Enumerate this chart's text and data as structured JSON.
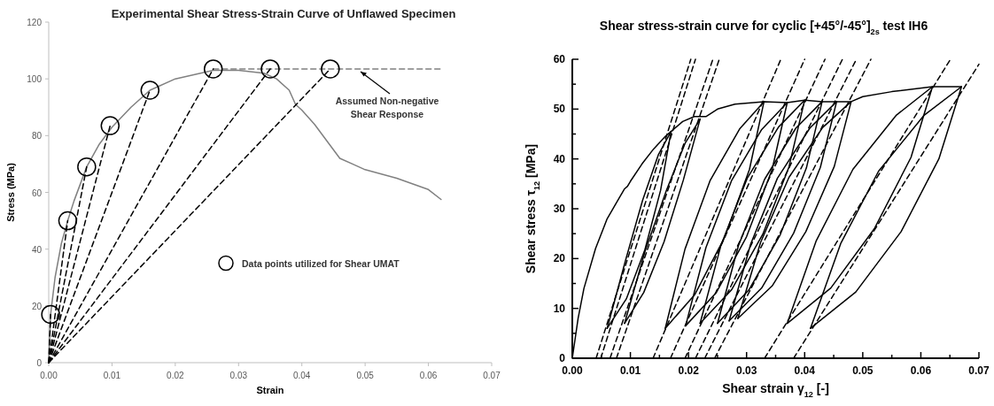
{
  "chart_data": [
    {
      "type": "line",
      "title": "Experimental Shear Stress-Strain Curve of Unflawed Specimen",
      "xlabel": "Strain",
      "ylabel": "Stress (MPa)",
      "xlim": [
        0,
        0.07
      ],
      "ylim": [
        0,
        120
      ],
      "xticks": [
        {
          "value": 0,
          "label": "0.00"
        },
        {
          "value": 0.01,
          "label": "0.01"
        },
        {
          "value": 0.02,
          "label": "0.02"
        },
        {
          "value": 0.03,
          "label": "0.03"
        },
        {
          "value": 0.04,
          "label": "0.04"
        },
        {
          "value": 0.05,
          "label": "0.05"
        },
        {
          "value": 0.06,
          "label": "0.06"
        },
        {
          "value": 0.07,
          "label": "0.07"
        }
      ],
      "yticks": [
        0,
        20,
        40,
        60,
        80,
        100,
        120
      ],
      "legend": "right",
      "annotations": [
        {
          "text": "Assumed Non-negative Shear Response",
          "x": 0.049,
          "y": 103.5
        }
      ],
      "series": [
        {
          "color": "#808080",
          "line_style": "solid",
          "x": [
            0,
            0.0003,
            0.001,
            0.002,
            0.003,
            0.004,
            0.006,
            0.008,
            0.01,
            0.013,
            0.016,
            0.02,
            0.026,
            0.03,
            0.034,
            0.036,
            0.038,
            0.039,
            0.04,
            0.042,
            0.044,
            0.046,
            0.048,
            0.05,
            0.055,
            0.06,
            0.062
          ],
          "values": [
            0,
            17,
            30,
            42,
            50,
            57,
            69,
            77,
            83,
            90,
            96,
            100,
            103,
            103,
            102,
            100,
            96,
            91,
            89,
            84,
            78,
            72,
            70,
            68,
            65,
            61,
            57.5
          ]
        },
        {
          "color": "#808080",
          "line_style": "dashed",
          "x": [
            0.026,
            0.062
          ],
          "values": [
            103.5,
            103.5
          ]
        },
        {
          "color": "#000000",
          "line_style": "dashed",
          "x": [
            0,
            0.0003
          ],
          "values": [
            0,
            17
          ]
        },
        {
          "color": "#000000",
          "line_style": "dashed",
          "x": [
            0,
            0.003
          ],
          "values": [
            0,
            50
          ]
        },
        {
          "color": "#000000",
          "line_style": "dashed",
          "x": [
            0,
            0.006
          ],
          "values": [
            0,
            69
          ]
        },
        {
          "color": "#000000",
          "line_style": "dashed",
          "x": [
            0,
            0.0097
          ],
          "values": [
            0,
            83.5
          ]
        },
        {
          "color": "#000000",
          "line_style": "dashed",
          "x": [
            0,
            0.016
          ],
          "values": [
            0,
            96
          ]
        },
        {
          "color": "#000000",
          "line_style": "dashed",
          "x": [
            0,
            0.026
          ],
          "values": [
            0,
            103.5
          ]
        },
        {
          "color": "#000000",
          "line_style": "dashed",
          "x": [
            0,
            0.035
          ],
          "values": [
            0,
            103.5
          ]
        },
        {
          "color": "#000000",
          "line_style": "dashed",
          "x": [
            0,
            0.0445
          ],
          "values": [
            0,
            103.5
          ]
        },
        {
          "type": "scatter",
          "name": "Data points utilized for Shear UMAT",
          "color": "#000000",
          "marker": "circle",
          "x": [
            0.0003,
            0.003,
            0.006,
            0.0097,
            0.016,
            0.026,
            0.035,
            0.0445
          ],
          "values": [
            17,
            50,
            69,
            83.5,
            96,
            103.5,
            103.5,
            103.5
          ]
        }
      ]
    },
    {
      "type": "line",
      "title": "Shear stress-strain curve for cyclic [+45°/-45°]$_{2s}$ test IH6",
      "xlabel": "Shear strain γ$_{12}$ [-]",
      "ylabel": "Shear stress τ$_{12}$ [MPa]",
      "xlim": [
        0,
        0.07
      ],
      "ylim": [
        0,
        60
      ],
      "xticks": [
        {
          "value": 0,
          "label": "0.00"
        },
        {
          "value": 0.005,
          "label": null
        },
        {
          "value": 0.01,
          "label": "0.01"
        },
        {
          "value": 0.015,
          "label": null
        },
        {
          "value": 0.02,
          "label": "0.02"
        },
        {
          "value": 0.025,
          "label": null
        },
        {
          "value": 0.03,
          "label": "0.03"
        },
        {
          "value": 0.035,
          "label": null
        },
        {
          "value": 0.04,
          "label": "0.04"
        },
        {
          "value": 0.045,
          "label": null
        },
        {
          "value": 0.05,
          "label": "0.05"
        },
        {
          "value": 0.055,
          "label": null
        },
        {
          "value": 0.06,
          "label": "0.06"
        },
        {
          "value": 0.065,
          "label": null
        },
        {
          "value": 0.07,
          "label": "0.07"
        }
      ],
      "yticks": [
        0,
        {
          "value": 5,
          "label": null
        },
        10,
        {
          "value": 15,
          "label": null
        },
        20,
        {
          "value": 25,
          "label": null
        },
        30,
        {
          "value": 35,
          "label": null
        },
        40,
        {
          "value": 45,
          "label": null
        },
        50,
        {
          "value": 55,
          "label": null
        },
        60
      ],
      "series": [
        {
          "color": "#000000",
          "line_style": "solid",
          "x": [
            0,
            0.001,
            0.002,
            0.004,
            0.006,
            0.008,
            0.009,
            0.0095,
            0.01,
            0.012,
            0.014,
            0.016,
            0.017,
            0.019,
            0.021,
            0.023,
            0.025,
            0.028,
            0.033,
            0.037,
            0.04,
            0.043,
            0.0455,
            0.048,
            0.05,
            0.055,
            0.062,
            0.067
          ],
          "values": [
            0,
            8,
            14,
            22,
            28,
            32,
            34,
            34.5,
            35.5,
            39,
            42,
            44.5,
            45.5,
            47.5,
            48.5,
            48.5,
            50,
            51,
            51.5,
            51.3,
            51.8,
            51.5,
            51.5,
            51.5,
            52.5,
            53.5,
            54.5,
            54.5
          ]
        },
        {
          "color": "#000000",
          "line_style": "solid",
          "x": [
            0.006,
            0.0092,
            0.0121,
            0.0148,
            0.017
          ],
          "values": [
            6,
            19.8,
            31.7,
            40.8,
            45.5
          ]
        },
        {
          "color": "#000000",
          "line_style": "solid",
          "x": [
            0.006,
            0.0093,
            0.0125,
            0.0152,
            0.017
          ],
          "values": [
            6,
            11.9,
            21.8,
            33.7,
            45.5
          ]
        },
        {
          "color": "#000000",
          "line_style": "solid",
          "x": [
            0.009,
            0.0125,
            0.0162,
            0.0194,
            0.022
          ],
          "values": [
            7,
            21.4,
            33.7,
            43.1,
            48
          ]
        },
        {
          "color": "#000000",
          "line_style": "solid",
          "x": [
            0.009,
            0.0123,
            0.0158,
            0.0191,
            0.022
          ],
          "values": [
            7,
            13.2,
            23.4,
            35.7,
            48
          ]
        },
        {
          "color": "#000000",
          "line_style": "solid",
          "x": [
            0.016,
            0.0194,
            0.0237,
            0.0288,
            0.033
          ],
          "values": [
            6,
            21.9,
            35.6,
            46,
            51.5
          ]
        },
        {
          "color": "#000000",
          "line_style": "solid",
          "x": [
            0.016,
            0.0211,
            0.0262,
            0.0305,
            0.033
          ],
          "values": [
            6,
            12.8,
            24.2,
            37.9,
            51.5
          ]
        },
        {
          "color": "#000000",
          "line_style": "solid",
          "x": [
            0.0195,
            0.023,
            0.0274,
            0.0326,
            0.037
          ],
          "values": [
            6.5,
            22.2,
            35.6,
            45.9,
            51.3
          ]
        },
        {
          "color": "#000000",
          "line_style": "solid",
          "x": [
            0.0195,
            0.0248,
            0.03,
            0.0344,
            0.037
          ],
          "values": [
            6.5,
            13.2,
            24.4,
            37.9,
            51.3
          ]
        },
        {
          "color": "#000000",
          "line_style": "solid",
          "x": [
            0.022,
            0.0256,
            0.0301,
            0.0355,
            0.04
          ],
          "values": [
            7,
            22.7,
            36.1,
            46.4,
            51.8
          ]
        },
        {
          "color": "#000000",
          "line_style": "solid",
          "x": [
            0.022,
            0.0274,
            0.0328,
            0.0373,
            0.04
          ],
          "values": [
            7,
            13.7,
            24.9,
            38.4,
            51.8
          ]
        },
        {
          "color": "#000000",
          "line_style": "solid",
          "x": [
            0.025,
            0.0286,
            0.0331,
            0.0385,
            0.043
          ],
          "values": [
            7,
            22.6,
            35.9,
            46.2,
            51.5
          ]
        },
        {
          "color": "#000000",
          "line_style": "solid",
          "x": [
            0.025,
            0.0304,
            0.0358,
            0.0403,
            0.043
          ],
          "values": [
            7,
            13.7,
            24.8,
            38.2,
            51.5
          ]
        },
        {
          "color": "#000000",
          "line_style": "solid",
          "x": [
            0.027,
            0.0307,
            0.0353,
            0.0409,
            0.0455
          ],
          "values": [
            7.5,
            22.9,
            36.1,
            46.2,
            51.5
          ]
        },
        {
          "color": "#000000",
          "line_style": "solid",
          "x": [
            0.027,
            0.0326,
            0.0381,
            0.0427,
            0.0455
          ],
          "values": [
            7.5,
            14.1,
            25.1,
            38.3,
            51.5
          ]
        },
        {
          "color": "#000000",
          "line_style": "solid",
          "x": [
            0.0285,
            0.0324,
            0.0373,
            0.0431,
            0.048
          ],
          "values": [
            8,
            23.2,
            36.3,
            46.3,
            51.5
          ]
        },
        {
          "color": "#000000",
          "line_style": "solid",
          "x": [
            0.0285,
            0.0344,
            0.0402,
            0.0451,
            0.048
          ],
          "values": [
            8,
            14.5,
            25.4,
            38.5,
            51.5
          ]
        },
        {
          "color": "#000000",
          "line_style": "solid",
          "x": [
            0.037,
            0.042,
            0.0483,
            0.0558,
            0.062
          ],
          "values": [
            7,
            23.6,
            37.9,
            48.8,
            54.5
          ]
        },
        {
          "color": "#000000",
          "line_style": "solid",
          "x": [
            0.037,
            0.0445,
            0.052,
            0.0583,
            0.062
          ],
          "values": [
            7,
            14.1,
            26,
            40.3,
            54.5
          ]
        },
        {
          "color": "#000000",
          "line_style": "solid",
          "x": [
            0.041,
            0.0462,
            0.0527,
            0.0605,
            0.067
          ],
          "values": [
            6,
            23,
            37.5,
            48.7,
            54.5
          ]
        },
        {
          "color": "#000000",
          "line_style": "solid",
          "x": [
            0.041,
            0.0488,
            0.0566,
            0.0631,
            0.067
          ],
          "values": [
            6,
            13.3,
            25.4,
            40,
            54.5
          ]
        },
        {
          "color": "#000000",
          "line_style": "dashed",
          "x": [
            0.0041,
            0.0204
          ],
          "values": [
            0,
            60
          ]
        },
        {
          "color": "#000000",
          "line_style": "dashed",
          "x": [
            0.0049,
            0.0212
          ],
          "values": [
            0,
            60
          ]
        },
        {
          "color": "#000000",
          "line_style": "dashed",
          "x": [
            0.0065,
            0.0242
          ],
          "values": [
            0,
            60
          ]
        },
        {
          "color": "#000000",
          "line_style": "dashed",
          "x": [
            0.0076,
            0.0253
          ],
          "values": [
            0,
            60
          ]
        },
        {
          "color": "#000000",
          "line_style": "dashed",
          "x": [
            0.0139,
            0.0359
          ],
          "values": [
            0,
            60
          ]
        },
        {
          "color": "#000000",
          "line_style": "dashed",
          "x": [
            0.0169,
            0.04
          ],
          "values": [
            0,
            60
          ]
        },
        {
          "color": "#000000",
          "line_style": "dashed",
          "x": [
            0.0194,
            0.0435
          ],
          "values": [
            0,
            60
          ]
        },
        {
          "color": "#000000",
          "line_style": "dashed",
          "x": [
            0.0212,
            0.0465
          ],
          "values": [
            0,
            60
          ]
        },
        {
          "color": "#000000",
          "line_style": "dashed",
          "x": [
            0.0228,
            0.0489
          ],
          "values": [
            0,
            60
          ]
        },
        {
          "color": "#000000",
          "line_style": "dashed",
          "x": [
            0.0245,
            0.0514
          ],
          "values": [
            0,
            60
          ]
        },
        {
          "color": "#000000",
          "line_style": "dashed",
          "x": [
            0.0331,
            0.0651
          ],
          "values": [
            0,
            60
          ]
        },
        {
          "color": "#000000",
          "line_style": "dashed",
          "x": [
            0.0381,
            0.07
          ],
          "values": [
            0,
            59
          ]
        }
      ]
    }
  ]
}
